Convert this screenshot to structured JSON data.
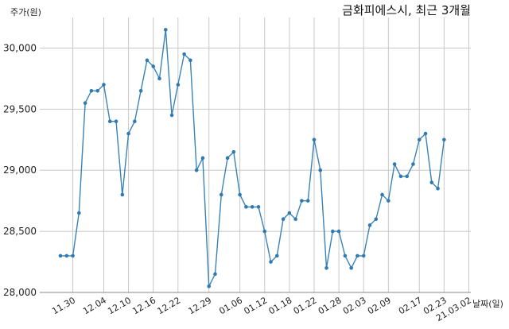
{
  "chart_data": {
    "type": "line",
    "title": "금화피에스시, 최근 3개월",
    "ylabel": "주가(원)",
    "xlabel": "날짜(일)",
    "ylim": [
      28000,
      30250
    ],
    "y_ticks": [
      28000,
      28500,
      29000,
      29500,
      30000
    ],
    "y_tick_labels": [
      "28,000",
      "28,500",
      "29,000",
      "29,500",
      "30,000"
    ],
    "x_tick_labels": [
      "11.30",
      "12.04",
      "12.10",
      "12.16",
      "12.22",
      "12.29",
      "01.06",
      "01.12",
      "01.18",
      "01.22",
      "01.28",
      "02.03",
      "02.09",
      "02.17",
      "02.23",
      "21.03.02"
    ],
    "x_tick_indices": [
      2,
      7,
      11,
      15,
      19,
      24,
      29,
      33,
      37,
      41,
      45,
      49,
      53,
      58,
      62,
      66
    ],
    "grid": true,
    "series": [
      {
        "values": [
          28300,
          28300,
          28300,
          28650,
          29550,
          29650,
          29650,
          29700,
          29400,
          29400,
          28800,
          29300,
          29400,
          29650,
          29900,
          29850,
          29750,
          30150,
          29450,
          29700,
          29950,
          29900,
          29000,
          29100,
          28050,
          28150,
          28800,
          29100,
          29150,
          28800,
          28700,
          28700,
          28700,
          28500,
          28250,
          28300,
          28600,
          28650,
          28600,
          28750,
          28750,
          29250,
          29000,
          28200,
          28500,
          28500,
          28300,
          28200,
          28300,
          28300,
          28550,
          28600,
          28800,
          28750,
          29050,
          28950,
          28950,
          29050,
          29250,
          29300,
          28900,
          28850,
          29250
        ]
      }
    ]
  }
}
